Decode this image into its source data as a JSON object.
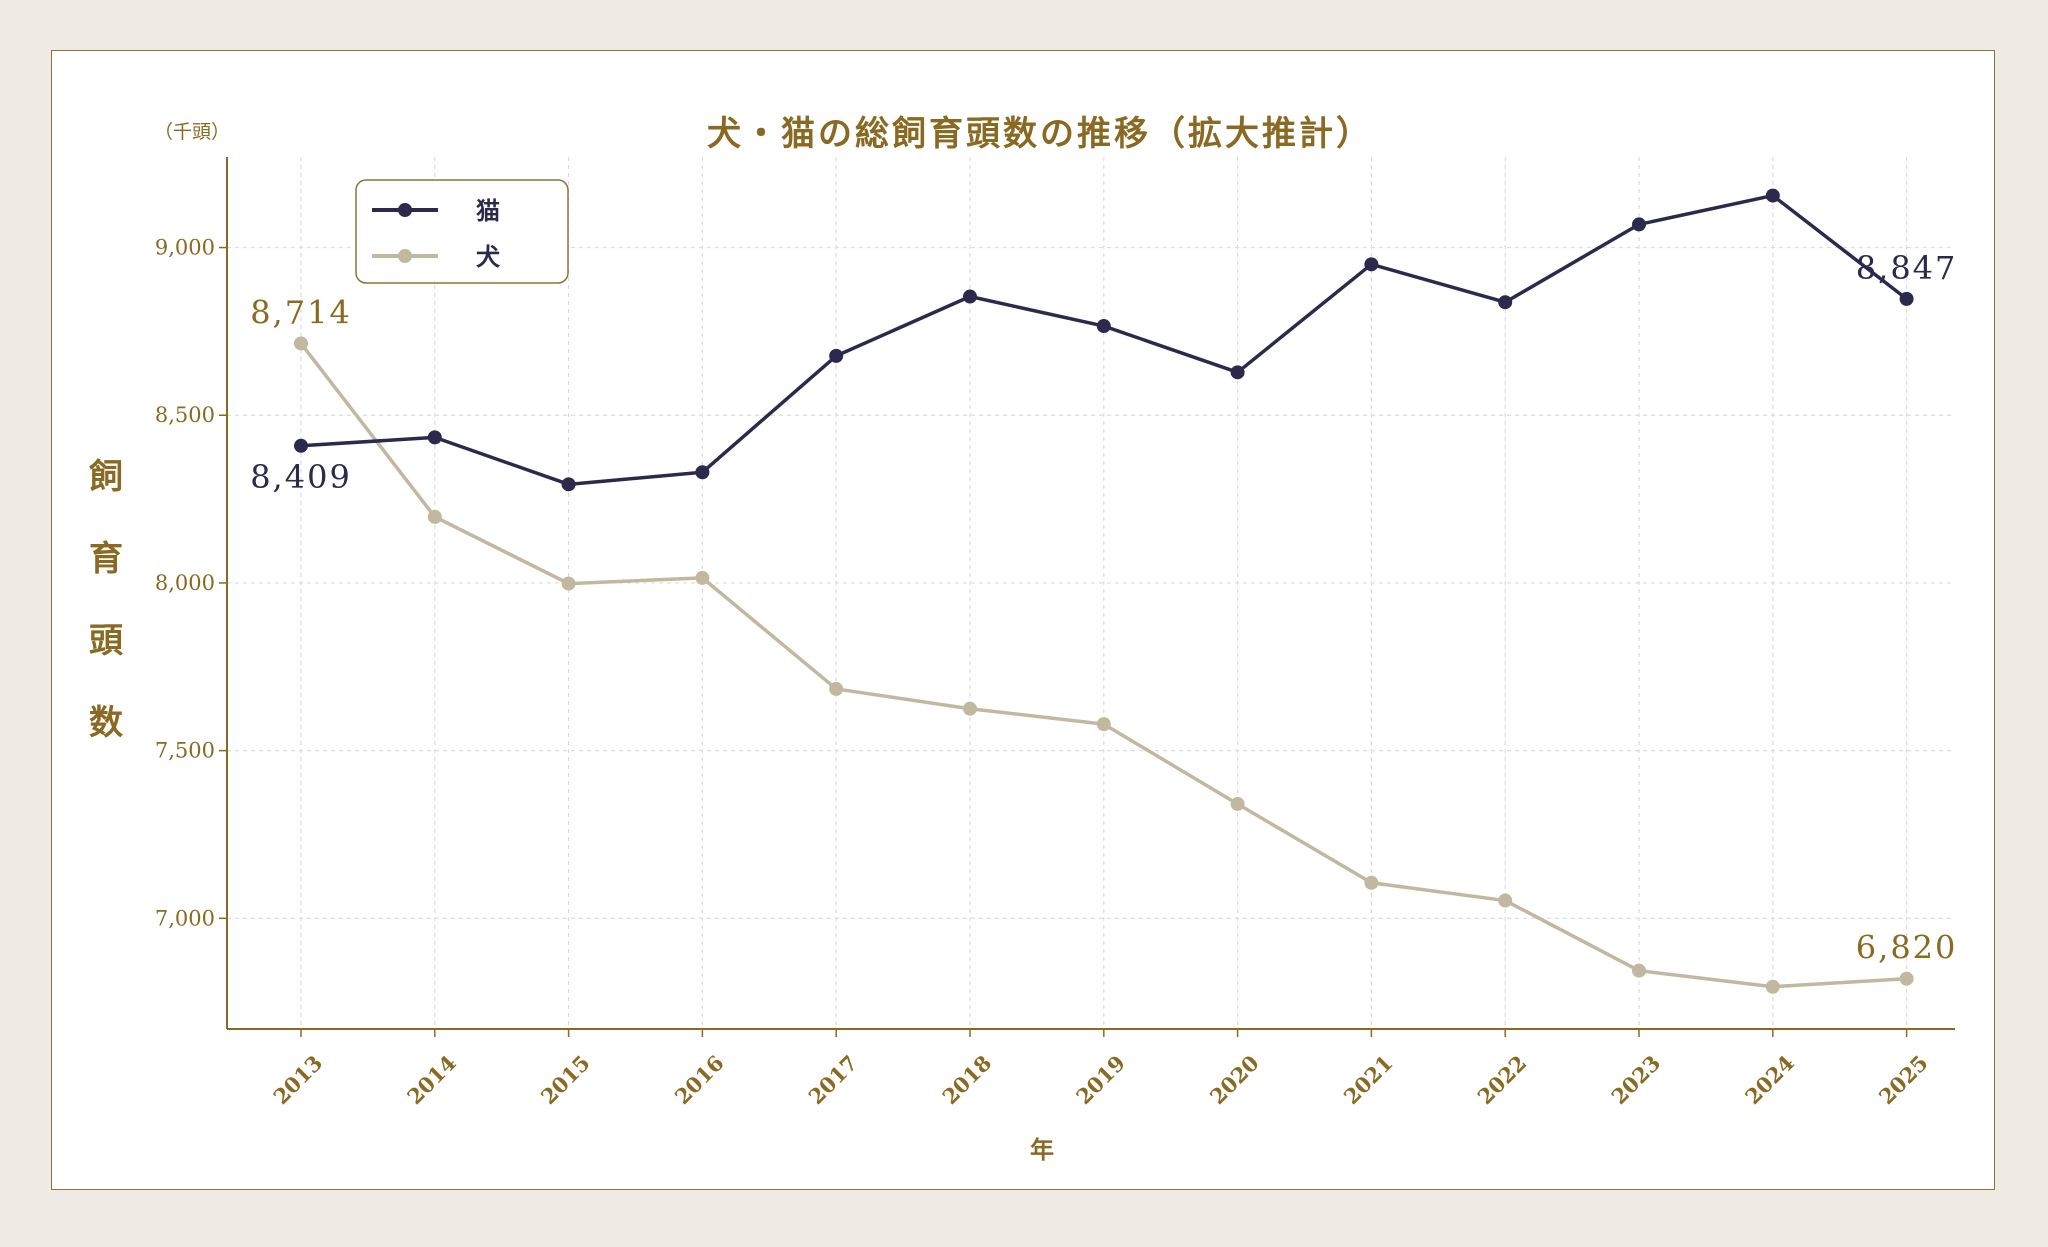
{
  "colors": {
    "accent": "#8a6a22",
    "cat": "#2b2a4c",
    "dog": "#c2b8a0",
    "grid": "#dcdcdc",
    "frame_border": "#8a7440",
    "background": "#efebe4"
  },
  "chart_data": {
    "type": "line",
    "title": "犬・猫の総飼育頭数の推移（拡大推計）",
    "unit_label": "（千頭）",
    "ylabel": "飼育頭数",
    "xlabel": "年",
    "x": [
      "2013",
      "2014",
      "2015",
      "2016",
      "2017",
      "2018",
      "2019",
      "2020",
      "2021",
      "2022",
      "2023",
      "2024",
      "2025"
    ],
    "ylim": [
      6670,
      9270
    ],
    "yticks": [
      7000,
      7500,
      8000,
      8500,
      9000
    ],
    "ytick_labels": [
      "7,000",
      "7,500",
      "8,000",
      "8,500",
      "9,000"
    ],
    "grid": true,
    "legend_position": "top-left",
    "series": [
      {
        "name": "猫",
        "color": "#2b2a4c",
        "values": [
          8409,
          8434,
          8294,
          8330,
          8677,
          8854,
          8766,
          8628,
          8950,
          8837,
          9069,
          9155,
          8847
        ]
      },
      {
        "name": "犬",
        "color": "#c2b8a0",
        "values": [
          8714,
          8197,
          7998,
          8015,
          7684,
          7625,
          7579,
          7341,
          7106,
          7053,
          6844,
          6796,
          6820
        ]
      }
    ],
    "annotations": [
      {
        "series": 0,
        "index": 0,
        "text": "8,409",
        "placement": "below"
      },
      {
        "series": 0,
        "index": 12,
        "text": "8,847",
        "placement": "above"
      },
      {
        "series": 1,
        "index": 0,
        "text": "8,714",
        "placement": "above"
      },
      {
        "series": 1,
        "index": 12,
        "text": "6,820",
        "placement": "above"
      }
    ]
  }
}
